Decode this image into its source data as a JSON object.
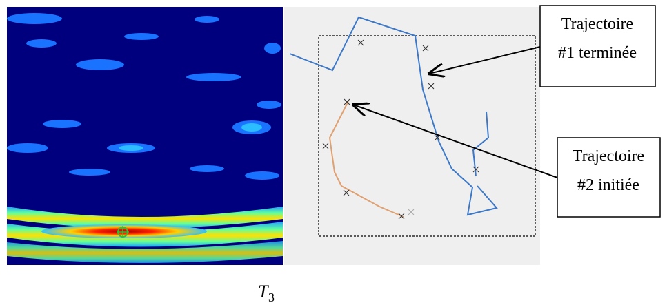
{
  "annotations": [
    {
      "lines": [
        "Trajectoire",
        "#1 terminée"
      ]
    },
    {
      "lines": [
        "Trajectoire",
        "#2 initiée"
      ]
    }
  ],
  "caption": {
    "symbol": "T",
    "subscript": "3"
  }
}
